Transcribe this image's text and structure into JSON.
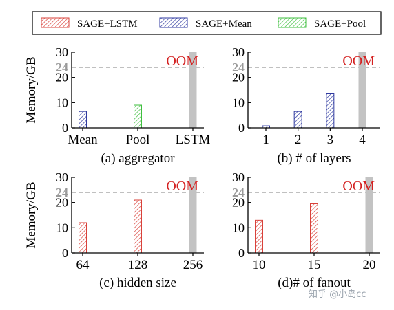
{
  "legend": {
    "entries": [
      {
        "name": "SAGE+LSTM",
        "color": "#d9413a"
      },
      {
        "name": "SAGE+Mean",
        "color": "#2f3aa0"
      },
      {
        "name": "SAGE+Pool",
        "color": "#3fbf3f"
      }
    ]
  },
  "watermark": "知乎 @小岛cc",
  "chart_data": [
    {
      "type": "bar",
      "title": "(a) aggregator",
      "ylabel": "Memory/GB",
      "ylim": [
        0,
        30
      ],
      "yticks": [
        0,
        10,
        20,
        30
      ],
      "ref_line": {
        "value": 24,
        "label": "24",
        "style": "dashed"
      },
      "oom_label": "OOM",
      "categories": [
        "Mean",
        "Pool",
        "LSTM"
      ],
      "bars": [
        {
          "category": "Mean",
          "series": "SAGE+Mean",
          "value": 6.5
        },
        {
          "category": "Pool",
          "series": "SAGE+Pool",
          "value": 9
        },
        {
          "category": "LSTM",
          "series": "SAGE+LSTM",
          "value": 30,
          "oom": true
        }
      ]
    },
    {
      "type": "bar",
      "title": "(b) # of layers",
      "ylabel": "",
      "ylim": [
        0,
        30
      ],
      "yticks": [
        0,
        10,
        20,
        30
      ],
      "ref_line": {
        "value": 24,
        "label": "24",
        "style": "dashed"
      },
      "oom_label": "OOM",
      "categories": [
        "1",
        "2",
        "3",
        "4"
      ],
      "bars": [
        {
          "category": "1",
          "series": "SAGE+Mean",
          "value": 0.8
        },
        {
          "category": "2",
          "series": "SAGE+Mean",
          "value": 6.5
        },
        {
          "category": "3",
          "series": "SAGE+Mean",
          "value": 13.5
        },
        {
          "category": "4",
          "series": "SAGE+LSTM",
          "value": 30,
          "oom": true
        }
      ]
    },
    {
      "type": "bar",
      "title": "(c) hidden size",
      "ylabel": "Memory/GB",
      "ylim": [
        0,
        30
      ],
      "yticks": [
        0,
        10,
        20,
        30
      ],
      "ref_line": {
        "value": 24,
        "label": "24",
        "style": "dashed"
      },
      "oom_label": "OOM",
      "categories": [
        "64",
        "128",
        "256"
      ],
      "bars": [
        {
          "category": "64",
          "series": "SAGE+LSTM",
          "value": 12
        },
        {
          "category": "128",
          "series": "SAGE+LSTM",
          "value": 21
        },
        {
          "category": "256",
          "series": "SAGE+LSTM",
          "value": 30,
          "oom": true
        }
      ]
    },
    {
      "type": "bar",
      "title": "(d)# of fanout",
      "ylabel": "",
      "ylim": [
        0,
        30
      ],
      "yticks": [
        0,
        10,
        20,
        30
      ],
      "ref_line": {
        "value": 24,
        "label": "24",
        "style": "dashed"
      },
      "oom_label": "OOM",
      "categories": [
        "10",
        "15",
        "20"
      ],
      "bars": [
        {
          "category": "10",
          "series": "SAGE+LSTM",
          "value": 13
        },
        {
          "category": "15",
          "series": "SAGE+LSTM",
          "value": 19.5
        },
        {
          "category": "20",
          "series": "SAGE+LSTM",
          "value": 30,
          "oom": true
        }
      ]
    }
  ]
}
